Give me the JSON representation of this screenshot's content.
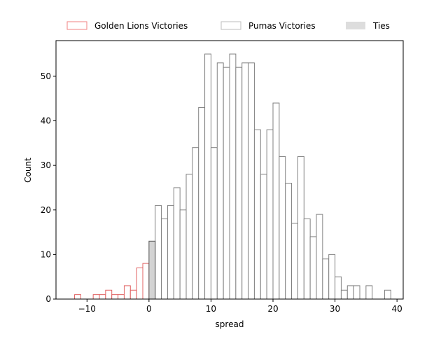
{
  "chart_data": {
    "type": "bar",
    "xlabel": "spread",
    "ylabel": "Count",
    "xlim": [
      -15,
      41
    ],
    "ylim": [
      0,
      58
    ],
    "xticks": [
      -10,
      0,
      10,
      20,
      30,
      40
    ],
    "yticks": [
      0,
      10,
      20,
      30,
      40,
      50
    ],
    "bin_width": 1,
    "legend_position": "top-center",
    "series": [
      {
        "name": "Golden Lions Victories",
        "color": "#e06060",
        "fill": "#ffffff",
        "bins": [
          {
            "x": -12,
            "count": 1
          },
          {
            "x": -9,
            "count": 1
          },
          {
            "x": -8,
            "count": 1
          },
          {
            "x": -7,
            "count": 2
          },
          {
            "x": -6,
            "count": 1
          },
          {
            "x": -5,
            "count": 1
          },
          {
            "x": -4,
            "count": 3
          },
          {
            "x": -3,
            "count": 2
          },
          {
            "x": -2,
            "count": 7
          },
          {
            "x": -1,
            "count": 8
          }
        ]
      },
      {
        "name": "Pumas Victories",
        "color": "#808080",
        "fill": "#ffffff",
        "bins": [
          {
            "x": 1,
            "count": 21
          },
          {
            "x": 2,
            "count": 18
          },
          {
            "x": 3,
            "count": 21
          },
          {
            "x": 4,
            "count": 25
          },
          {
            "x": 5,
            "count": 20
          },
          {
            "x": 6,
            "count": 28
          },
          {
            "x": 7,
            "count": 34
          },
          {
            "x": 8,
            "count": 43
          },
          {
            "x": 9,
            "count": 55
          },
          {
            "x": 10,
            "count": 34
          },
          {
            "x": 11,
            "count": 53
          },
          {
            "x": 12,
            "count": 52
          },
          {
            "x": 13,
            "count": 55
          },
          {
            "x": 14,
            "count": 52
          },
          {
            "x": 15,
            "count": 53
          },
          {
            "x": 16,
            "count": 53
          },
          {
            "x": 17,
            "count": 38
          },
          {
            "x": 18,
            "count": 28
          },
          {
            "x": 19,
            "count": 38
          },
          {
            "x": 20,
            "count": 44
          },
          {
            "x": 21,
            "count": 32
          },
          {
            "x": 22,
            "count": 26
          },
          {
            "x": 23,
            "count": 17
          },
          {
            "x": 24,
            "count": 32
          },
          {
            "x": 25,
            "count": 18
          },
          {
            "x": 26,
            "count": 14
          },
          {
            "x": 27,
            "count": 19
          },
          {
            "x": 28,
            "count": 9
          },
          {
            "x": 29,
            "count": 10
          },
          {
            "x": 30,
            "count": 5
          },
          {
            "x": 31,
            "count": 2
          },
          {
            "x": 32,
            "count": 3
          },
          {
            "x": 33,
            "count": 3
          },
          {
            "x": 35,
            "count": 3
          },
          {
            "x": 38,
            "count": 2
          }
        ]
      },
      {
        "name": "Ties",
        "color": "#555555",
        "fill": "#d3d3d3",
        "bins": [
          {
            "x": 0,
            "count": 13
          }
        ]
      }
    ]
  }
}
